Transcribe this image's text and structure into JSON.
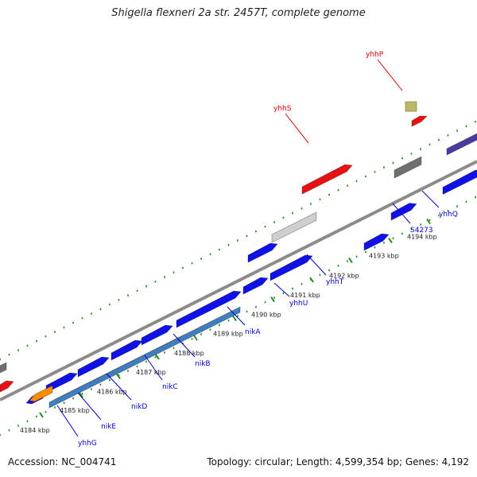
{
  "title": "Shigella flexneri 2a str. 2457T, complete genome",
  "footer": {
    "accession": "Accession: NC_004741",
    "topology": "Topology: circular; Length: 4,599,354 bp; Genes: 4,192"
  },
  "colors": {
    "backbone": "#8c8c8c",
    "dots": "#1f8a1f",
    "gene_blue": "#1010e8",
    "cds_dark": "#4a3aa0",
    "cds_light": "#3f7fc0",
    "rna_red": "#e81010",
    "gray": "#6f6f6f",
    "label_blue": "#0000cc",
    "label_red": "#dd0000"
  },
  "ticks": [
    {
      "label": "4184 kbp"
    },
    {
      "label": "4185 kbp"
    },
    {
      "label": "4186 kbp"
    },
    {
      "label": "4187 kbp"
    },
    {
      "label": "4188 kbp"
    },
    {
      "label": "4189 kbp"
    },
    {
      "label": "4190 kbp"
    },
    {
      "label": "4191 kbp"
    },
    {
      "label": "4192 kbp"
    },
    {
      "label": "4193 kbp"
    },
    {
      "label": "4194 kbp"
    }
  ],
  "gene_labels": [
    {
      "name": "yhhG",
      "color": "blue"
    },
    {
      "name": "nikE",
      "color": "blue"
    },
    {
      "name": "nikD",
      "color": "blue"
    },
    {
      "name": "nikC",
      "color": "blue"
    },
    {
      "name": "nikB",
      "color": "blue"
    },
    {
      "name": "nikA",
      "color": "blue"
    },
    {
      "name": "yhhU",
      "color": "blue"
    },
    {
      "name": "yhhT",
      "color": "blue"
    },
    {
      "name": "S4273",
      "color": "blue"
    },
    {
      "name": "yhhQ",
      "color": "blue"
    },
    {
      "name": "yhhS",
      "color": "red"
    },
    {
      "name": "yhhP",
      "color": "red"
    }
  ]
}
